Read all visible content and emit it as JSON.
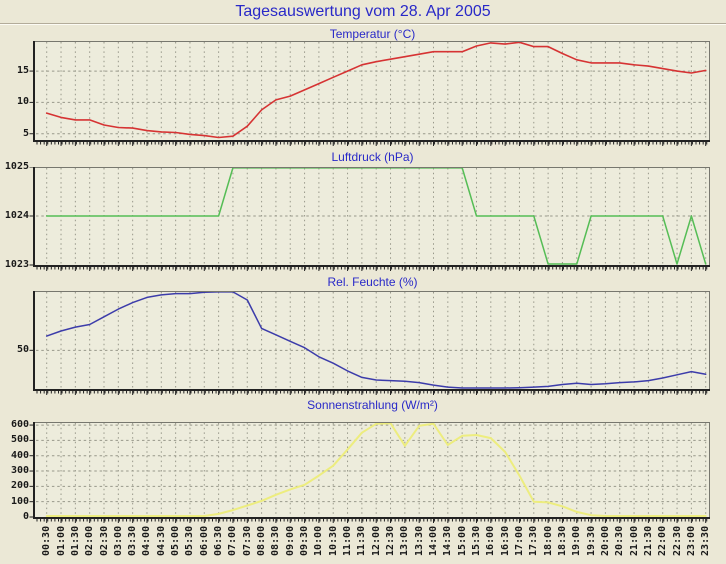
{
  "page": {
    "title": "Tagesauswertung vom 28. Apr 2005"
  },
  "style": {
    "page_bg": "#ebe8d6",
    "plot_bg": "#edecdc",
    "grid_color": "#98988a",
    "border_dark": "#222222",
    "border_soft": "#77776e",
    "title_color": "#2929c8",
    "label_color": "#191919"
  },
  "chart_data": [
    {
      "id": "temperature",
      "type": "line",
      "title": "Temperatur (°C)",
      "line_color": "#d63333",
      "line_width": 1.6,
      "ylim": [
        4.0,
        19.8
      ],
      "yticks": [
        {
          "v": 5,
          "label": "5"
        },
        {
          "v": 10,
          "label": "10"
        },
        {
          "v": 15,
          "label": "15"
        }
      ],
      "grid": true,
      "show_x_labels": false,
      "categories": [
        "00:30",
        "01:00",
        "01:30",
        "02:00",
        "02:30",
        "03:00",
        "03:30",
        "04:00",
        "04:30",
        "05:00",
        "05:30",
        "06:00",
        "06:30",
        "07:00",
        "07:30",
        "08:00",
        "08:30",
        "09:00",
        "09:30",
        "10:00",
        "10:30",
        "11:00",
        "11:30",
        "12:00",
        "12:30",
        "13:00",
        "13:30",
        "14:00",
        "14:30",
        "15:00",
        "15:30",
        "16:00",
        "16:30",
        "17:00",
        "17:30",
        "18:00",
        "18:30",
        "19:00",
        "19:30",
        "20:00",
        "20:30",
        "21:00",
        "21:30",
        "22:00",
        "22:30",
        "23:00",
        "23:30"
      ],
      "values": [
        8.3,
        7.6,
        7.2,
        7.2,
        6.4,
        6.0,
        5.9,
        5.5,
        5.3,
        5.2,
        4.9,
        4.7,
        4.4,
        4.6,
        6.2,
        8.8,
        10.4,
        11.0,
        12.0,
        13.0,
        14.0,
        15.0,
        16.0,
        16.5,
        16.9,
        17.3,
        17.7,
        18.1,
        18.1,
        18.1,
        19.0,
        19.5,
        19.3,
        19.6,
        18.9,
        18.9,
        17.8,
        16.8,
        16.3,
        16.3,
        16.3,
        16.0,
        15.8,
        15.4,
        15.0,
        14.7,
        15.1
      ]
    },
    {
      "id": "pressure",
      "type": "line",
      "title": "Luftdruck (hPa)",
      "line_color": "#55bd55",
      "line_width": 1.5,
      "ylim": [
        1023,
        1025
      ],
      "yticks": [
        {
          "v": 1023,
          "label": "1023"
        },
        {
          "v": 1024,
          "label": "1024"
        },
        {
          "v": 1025,
          "label": "1025"
        }
      ],
      "grid": true,
      "show_x_labels": false,
      "categories": [
        "00:30",
        "01:00",
        "01:30",
        "02:00",
        "02:30",
        "03:00",
        "03:30",
        "04:00",
        "04:30",
        "05:00",
        "05:30",
        "06:00",
        "06:30",
        "07:00",
        "07:30",
        "08:00",
        "08:30",
        "09:00",
        "09:30",
        "10:00",
        "10:30",
        "11:00",
        "11:30",
        "12:00",
        "12:30",
        "13:00",
        "13:30",
        "14:00",
        "14:30",
        "15:00",
        "15:30",
        "16:00",
        "16:30",
        "17:00",
        "17:30",
        "18:00",
        "18:30",
        "19:00",
        "19:30",
        "20:00",
        "20:30",
        "21:00",
        "21:30",
        "22:00",
        "22:30",
        "23:00",
        "23:30"
      ],
      "values": [
        1024,
        1024,
        1024,
        1024,
        1024,
        1024,
        1024,
        1024,
        1024,
        1024,
        1024,
        1024,
        1024,
        1025,
        1025,
        1025,
        1025,
        1025,
        1025,
        1025,
        1025,
        1025,
        1025,
        1025,
        1025,
        1025,
        1025,
        1025,
        1025,
        1025,
        1024,
        1024,
        1024,
        1024,
        1024,
        1023,
        1023,
        1023,
        1024,
        1024,
        1024,
        1024,
        1024,
        1024,
        1023,
        1024,
        1023
      ]
    },
    {
      "id": "humidity",
      "type": "line",
      "title": "Rel. Feuchte (%)",
      "line_color": "#3c3caa",
      "line_width": 1.5,
      "ylim": [
        20,
        96
      ],
      "yticks": [
        {
          "v": 50,
          "label": "50"
        }
      ],
      "grid": true,
      "show_x_labels": false,
      "categories": [
        "00:30",
        "01:00",
        "01:30",
        "02:00",
        "02:30",
        "03:00",
        "03:30",
        "04:00",
        "04:30",
        "05:00",
        "05:30",
        "06:00",
        "06:30",
        "07:00",
        "07:30",
        "08:00",
        "08:30",
        "09:00",
        "09:30",
        "10:00",
        "10:30",
        "11:00",
        "11:30",
        "12:00",
        "12:30",
        "13:00",
        "13:30",
        "14:00",
        "14:30",
        "15:00",
        "15:30",
        "16:00",
        "16:30",
        "17:00",
        "17:30",
        "18:00",
        "18:30",
        "19:00",
        "19:30",
        "20:00",
        "20:30",
        "21:00",
        "21:30",
        "22:00",
        "22:30",
        "23:00",
        "23:30"
      ],
      "values": [
        61,
        65,
        68,
        70,
        76,
        82,
        87,
        91,
        93,
        94,
        94,
        95,
        96,
        96,
        89,
        67,
        62,
        57,
        52,
        45,
        40,
        34,
        29,
        27,
        26.5,
        26,
        25,
        23,
        21.5,
        20.5,
        20,
        20,
        20.5,
        21,
        21.5,
        22,
        23.5,
        24.5,
        23.5,
        24,
        25,
        25.5,
        26.5,
        28.5,
        31,
        33.5,
        31.5
      ]
    },
    {
      "id": "radiation",
      "type": "line",
      "title": "Sonnenstrahlung (W/m²)",
      "line_color": "#eded7e",
      "line_width": 2,
      "ylim": [
        0,
        620
      ],
      "yticks": [
        {
          "v": 0,
          "label": "0"
        },
        {
          "v": 100,
          "label": "100"
        },
        {
          "v": 200,
          "label": "200"
        },
        {
          "v": 300,
          "label": "300"
        },
        {
          "v": 400,
          "label": "400"
        },
        {
          "v": 500,
          "label": "500"
        },
        {
          "v": 600,
          "label": "600"
        }
      ],
      "grid": true,
      "show_x_labels": true,
      "categories": [
        "00:30",
        "01:00",
        "01:30",
        "02:00",
        "02:30",
        "03:00",
        "03:30",
        "04:00",
        "04:30",
        "05:00",
        "05:30",
        "06:00",
        "06:30",
        "07:00",
        "07:30",
        "08:00",
        "08:30",
        "09:00",
        "09:30",
        "10:00",
        "10:30",
        "11:00",
        "11:30",
        "12:00",
        "12:30",
        "13:00",
        "13:30",
        "14:00",
        "14:30",
        "15:00",
        "15:30",
        "16:00",
        "16:30",
        "17:00",
        "17:30",
        "18:00",
        "18:30",
        "19:00",
        "19:30",
        "20:00",
        "20:30",
        "21:00",
        "21:30",
        "22:00",
        "22:30",
        "23:00",
        "23:30"
      ],
      "values": [
        0,
        0,
        0,
        0,
        0,
        0,
        0,
        0,
        0,
        0,
        0,
        5,
        20,
        45,
        75,
        105,
        145,
        180,
        210,
        270,
        335,
        440,
        550,
        608,
        612,
        465,
        595,
        608,
        470,
        530,
        535,
        515,
        425,
        270,
        100,
        95,
        70,
        33,
        12,
        3,
        0,
        0,
        0,
        0,
        0,
        0,
        0
      ]
    }
  ]
}
